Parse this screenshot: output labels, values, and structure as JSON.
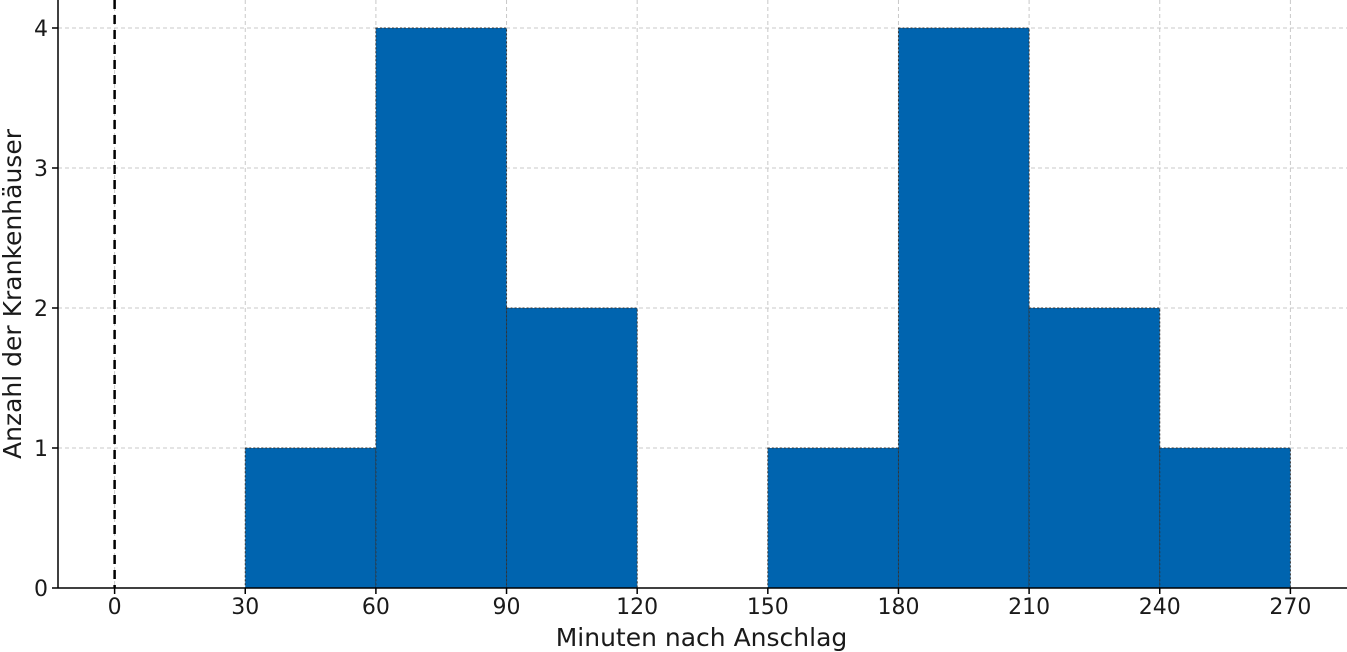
{
  "chart_data": {
    "type": "bar",
    "title": "",
    "xlabel": "Minuten nach Anschlag",
    "ylabel": "Anzahl der Krankenhäuser",
    "xlim": [
      -13,
      283
    ],
    "ylim": [
      0,
      4.2
    ],
    "xticks": [
      0,
      30,
      60,
      90,
      120,
      150,
      180,
      210,
      240,
      270
    ],
    "yticks": [
      0,
      1,
      2,
      3,
      4
    ],
    "bin_width": 30,
    "bins": [
      {
        "start": 30,
        "end": 60,
        "count": 1
      },
      {
        "start": 60,
        "end": 90,
        "count": 4
      },
      {
        "start": 90,
        "end": 120,
        "count": 2
      },
      {
        "start": 150,
        "end": 180,
        "count": 1
      },
      {
        "start": 180,
        "end": 210,
        "count": 4
      },
      {
        "start": 210,
        "end": 240,
        "count": 2
      },
      {
        "start": 240,
        "end": 270,
        "count": 1
      }
    ],
    "reference_line": {
      "x": 0,
      "style": "dashed"
    },
    "grid": true,
    "bar_color": "#0064AF"
  }
}
